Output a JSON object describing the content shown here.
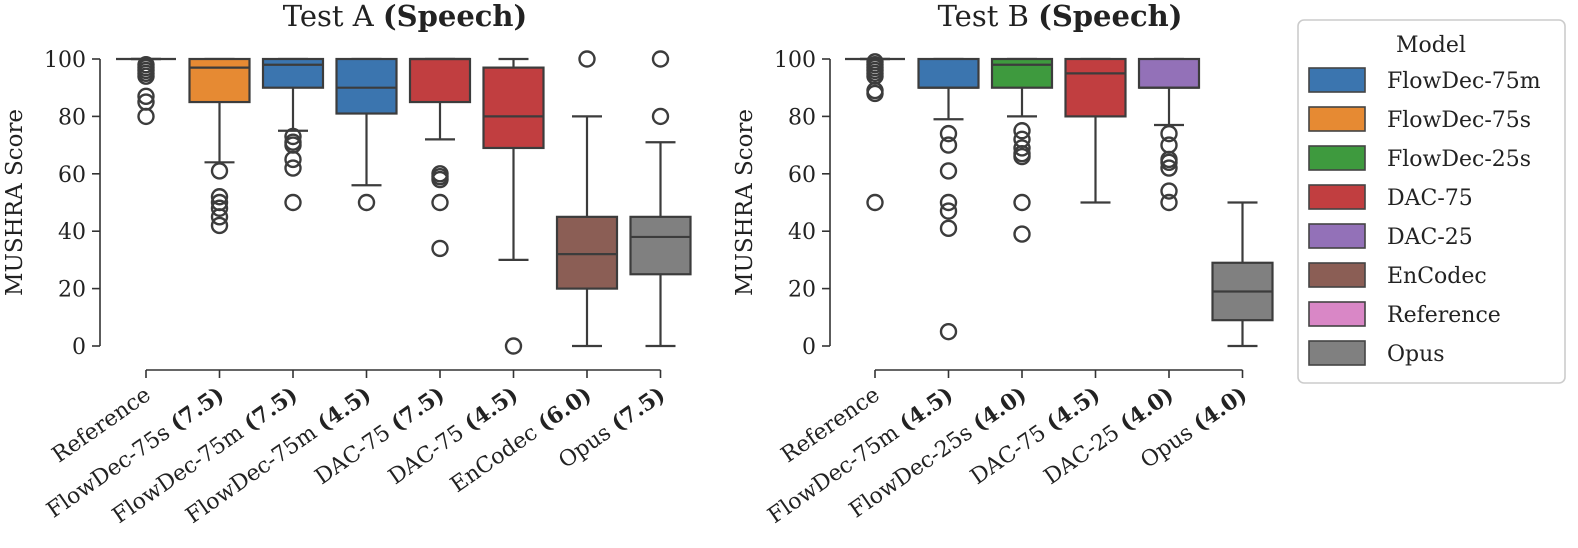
{
  "chart_data": [
    {
      "type": "box",
      "title": "Test A",
      "title_bold": "(Speech)",
      "ylabel": "MUSHRA Score",
      "ylim": [
        0,
        100
      ],
      "yticks": [
        0,
        20,
        40,
        60,
        80,
        100
      ],
      "grid": false,
      "categories": [
        {
          "label": "Reference",
          "bold": ""
        },
        {
          "label": "FlowDec-75s",
          "bold": "(7.5)"
        },
        {
          "label": "FlowDec-75m",
          "bold": "(7.5)"
        },
        {
          "label": "FlowDec-75m",
          "bold": "(4.5)"
        },
        {
          "label": "DAC-75",
          "bold": "(7.5)"
        },
        {
          "label": "DAC-75",
          "bold": "(4.5)"
        },
        {
          "label": "EnCodec",
          "bold": "(6.0)"
        },
        {
          "label": "Opus",
          "bold": "(7.5)"
        }
      ],
      "boxes": [
        {
          "model": "Reference",
          "q1": 100,
          "median": 100,
          "q3": 100,
          "whisker_low": 100,
          "whisker_high": 100,
          "outliers": [
            98,
            97,
            96,
            95,
            94,
            87,
            85,
            80
          ]
        },
        {
          "model": "FlowDec-75s",
          "q1": 85,
          "median": 97,
          "q3": 100,
          "whisker_low": 64,
          "whisker_high": 100,
          "outliers": [
            61,
            52,
            50,
            48,
            45,
            42
          ]
        },
        {
          "model": "FlowDec-75m",
          "q1": 90,
          "median": 98,
          "q3": 100,
          "whisker_low": 75,
          "whisker_high": 100,
          "outliers": [
            73,
            71,
            70,
            65,
            62,
            50
          ]
        },
        {
          "model": "FlowDec-75m",
          "q1": 81,
          "median": 90,
          "q3": 100,
          "whisker_low": 56,
          "whisker_high": 100,
          "outliers": [
            50
          ]
        },
        {
          "model": "DAC-75",
          "q1": 85,
          "median": 100,
          "q3": 100,
          "whisker_low": 72,
          "whisker_high": 100,
          "outliers": [
            60,
            59,
            58,
            50,
            34
          ]
        },
        {
          "model": "DAC-75",
          "q1": 69,
          "median": 80,
          "q3": 97,
          "whisker_low": 30,
          "whisker_high": 100,
          "outliers": [
            0
          ]
        },
        {
          "model": "EnCodec",
          "q1": 20,
          "median": 32,
          "q3": 45,
          "whisker_low": 0,
          "whisker_high": 80,
          "outliers": [
            100
          ]
        },
        {
          "model": "Opus",
          "q1": 25,
          "median": 38,
          "q3": 45,
          "whisker_low": 0,
          "whisker_high": 71,
          "outliers": [
            100,
            80
          ]
        }
      ]
    },
    {
      "type": "box",
      "title": "Test B",
      "title_bold": "(Speech)",
      "ylabel": "MUSHRA Score",
      "ylim": [
        0,
        100
      ],
      "yticks": [
        0,
        20,
        40,
        60,
        80,
        100
      ],
      "grid": false,
      "categories": [
        {
          "label": "Reference",
          "bold": ""
        },
        {
          "label": "FlowDec-75m",
          "bold": "(4.5)"
        },
        {
          "label": "FlowDec-25s",
          "bold": "(4.0)"
        },
        {
          "label": "DAC-75",
          "bold": "(4.5)"
        },
        {
          "label": "DAC-25",
          "bold": "(4.0)"
        },
        {
          "label": "Opus",
          "bold": "(4.0)"
        }
      ],
      "boxes": [
        {
          "model": "Reference",
          "q1": 100,
          "median": 100,
          "q3": 100,
          "whisker_low": 100,
          "whisker_high": 100,
          "outliers": [
            99,
            98,
            97,
            96,
            95,
            94,
            89,
            88,
            50
          ]
        },
        {
          "model": "FlowDec-75m",
          "q1": 90,
          "median": 90,
          "q3": 100,
          "whisker_low": 79,
          "whisker_high": 100,
          "outliers": [
            74,
            70,
            61,
            50,
            47,
            41,
            5
          ]
        },
        {
          "model": "FlowDec-25s",
          "q1": 90,
          "median": 98,
          "q3": 100,
          "whisker_low": 80,
          "whisker_high": 100,
          "outliers": [
            75,
            72,
            69,
            67,
            66,
            50,
            39
          ]
        },
        {
          "model": "DAC-75",
          "q1": 80,
          "median": 95,
          "q3": 100,
          "whisker_low": 50,
          "whisker_high": 100,
          "outliers": []
        },
        {
          "model": "DAC-25",
          "q1": 90,
          "median": 90,
          "q3": 100,
          "whisker_low": 77,
          "whisker_high": 100,
          "outliers": [
            74,
            70,
            65,
            64,
            62,
            54,
            50
          ]
        },
        {
          "model": "Opus",
          "q1": 9,
          "median": 19,
          "q3": 29,
          "whisker_low": 0,
          "whisker_high": 50,
          "outliers": []
        }
      ]
    }
  ],
  "legend": {
    "title": "Model",
    "placement": "right",
    "entries": [
      {
        "name": "FlowDec-75m",
        "color": "#3b75af"
      },
      {
        "name": "FlowDec-75s",
        "color": "#e68a33"
      },
      {
        "name": "FlowDec-25s",
        "color": "#3e9a3e"
      },
      {
        "name": "DAC-75",
        "color": "#c13e40"
      },
      {
        "name": "DAC-25",
        "color": "#9371b8"
      },
      {
        "name": "EnCodec",
        "color": "#8b5e55"
      },
      {
        "name": "Reference",
        "color": "#d987c6"
      },
      {
        "name": "Opus",
        "color": "#808080"
      }
    ]
  }
}
